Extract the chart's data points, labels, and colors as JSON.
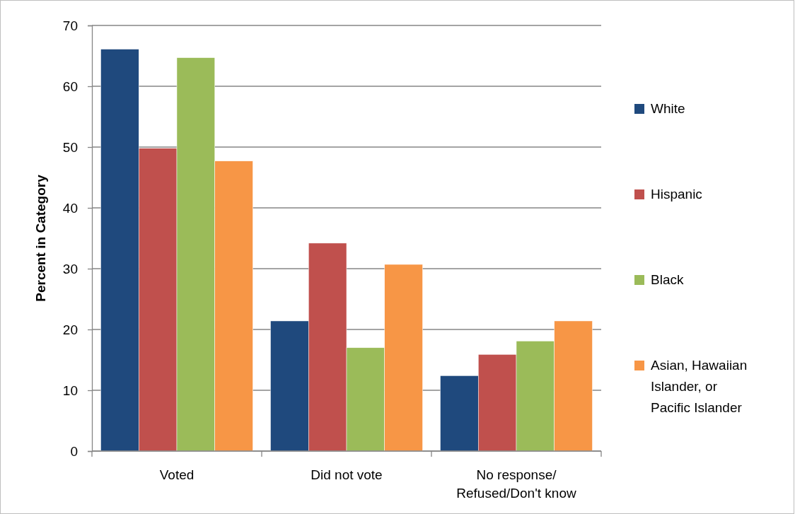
{
  "chart_data": {
    "type": "bar",
    "ylabel": "Percent in Category",
    "categories": [
      "Voted",
      "Did not vote",
      "No response/ Refused/Don't know"
    ],
    "series": [
      {
        "name": "White",
        "color": "#1f497d",
        "values": [
          66.1,
          21.4,
          12.4
        ]
      },
      {
        "name": "Hispanic",
        "color": "#c0504d",
        "values": [
          49.8,
          34.2,
          15.9
        ]
      },
      {
        "name": "Black",
        "color": "#9bbb59",
        "values": [
          64.7,
          17.0,
          18.1
        ]
      },
      {
        "name": "Asian, Hawaiian Islander, or Pacific Islander",
        "color": "#f79646",
        "values": [
          47.7,
          30.7,
          21.4
        ]
      }
    ],
    "ylim": [
      0,
      70
    ],
    "yticks": [
      0,
      10,
      20,
      30,
      40,
      50,
      60,
      70
    ],
    "grid": "y",
    "legend": "right"
  }
}
